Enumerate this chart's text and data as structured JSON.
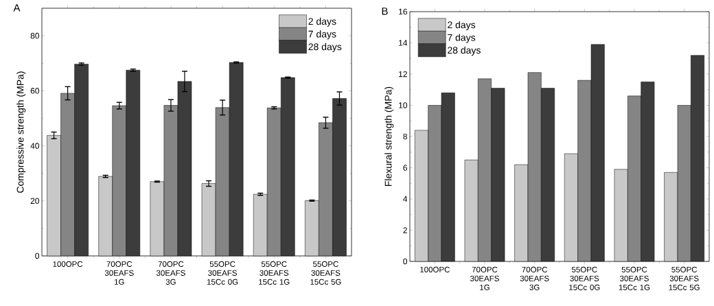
{
  "chart_data": [
    {
      "type": "bar",
      "title": "A",
      "ylabel": "Compressive strength (MPa)",
      "categories": [
        "100OPC",
        "70OPC 30EAFS 1G",
        "70OPC 30EAFS 3G",
        "55OPC 30EAFS 15Cc 0G",
        "55OPC 30EAFS 15Cc 1G",
        "55OPC 30EAFS 15Cc 5G"
      ],
      "series": [
        {
          "name": "2 days",
          "color": "#c8c8c8",
          "values": [
            43.8,
            28.9,
            27.0,
            26.3,
            22.4,
            20.1
          ],
          "errors": [
            1.2,
            0.4,
            0.2,
            1.0,
            0.4,
            0.2
          ]
        },
        {
          "name": "7 days",
          "color": "#858585",
          "values": [
            59.1,
            54.6,
            54.7,
            53.9,
            53.8,
            48.4
          ],
          "errors": [
            2.4,
            1.2,
            2.1,
            2.7,
            0.4,
            2.0
          ]
        },
        {
          "name": "28 days",
          "color": "#3c3c3c",
          "values": [
            69.7,
            67.5,
            63.4,
            70.3,
            64.8,
            57.2
          ],
          "errors": [
            0.4,
            0.4,
            3.7,
            0.2,
            0.2,
            2.4
          ]
        }
      ],
      "ylim": [
        0,
        90
      ],
      "yticks": [
        0,
        20,
        40,
        60,
        80
      ],
      "legend": "top right"
    },
    {
      "type": "bar",
      "title": "B",
      "ylabel": "Flexural strength (MPa)",
      "categories": [
        "100OPC",
        "70OPC 30EAFS 1G",
        "70OPC 30EAFS 3G",
        "55OPC 30EAFS 15Cc 0G",
        "55OPC 30EAFS 15Cc 1G",
        "55OPC 30EAFS 15Cc 5G"
      ],
      "series": [
        {
          "name": "2 days",
          "color": "#c8c8c8",
          "values": [
            8.4,
            6.5,
            6.2,
            6.9,
            5.9,
            5.7
          ]
        },
        {
          "name": "7 days",
          "color": "#858585",
          "values": [
            10.0,
            11.7,
            12.1,
            11.6,
            10.6,
            10.0
          ]
        },
        {
          "name": "28 days",
          "color": "#3c3c3c",
          "values": [
            10.8,
            11.1,
            11.1,
            13.9,
            11.5,
            13.2
          ]
        }
      ],
      "ylim": [
        0,
        16
      ],
      "yticks": [
        0,
        2,
        4,
        6,
        8,
        10,
        12,
        14,
        16
      ],
      "legend": "top left"
    }
  ]
}
